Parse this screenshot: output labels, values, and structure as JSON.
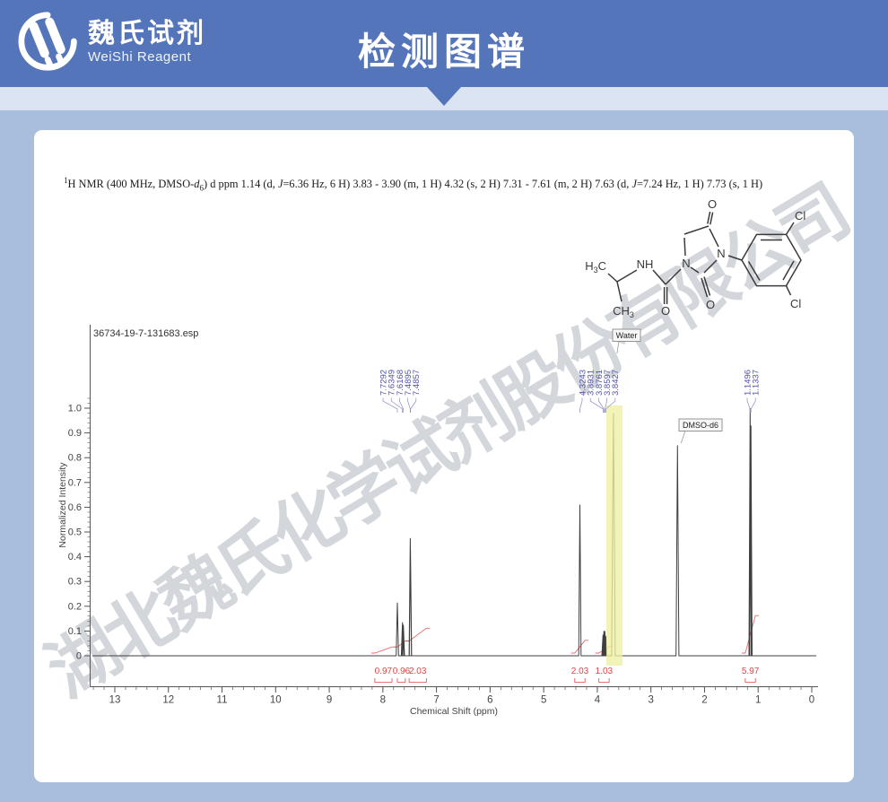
{
  "header": {
    "logo_cn": "魏氏试剂",
    "logo_en": "WeiShi Reagent",
    "title": "检测图谱",
    "bg_color": "#5575ba"
  },
  "watermark": {
    "text": "湖北魏氏化学试剂股份有限公司"
  },
  "nmr_text": {
    "sup": "1",
    "t1": "H NMR (400 MHz, DMSO-",
    "solvent_d": "d",
    "solvent_sub": "6",
    "t2": ") d ppm 1.14 (d, ",
    "j1": "J",
    "t3": "=6.36 Hz, 6 H) 3.83 - 3.90 (m, 1 H) 4.32 (s, 2 H) 7.31 - 7.61 (m, 2 H) 7.63 (d,  ",
    "j2": "J",
    "t4": "=7.24 Hz, 1 H) 7.73 (s, 1 H)"
  },
  "structure": {
    "h": "H",
    "three": "3",
    "c": "C",
    "nh": "NH",
    "n_ring1": "N",
    "n_ring2": "N",
    "o_amide": "O",
    "o_top": "O",
    "o_bottom": "O",
    "cl_top": "Cl",
    "cl_bottom": "Cl"
  },
  "chart_data": {
    "type": "line",
    "filename": "36734-19-7-131683.esp",
    "xlabel": "Chemical Shift (ppm)",
    "ylabel": "Normalized Intensity",
    "xlim": [
      13.47,
      -0.12
    ],
    "ylim": [
      0,
      1.05
    ],
    "x_ticks": [
      13,
      12,
      11,
      10,
      9,
      8,
      7,
      6,
      5,
      4,
      3,
      2,
      1,
      0
    ],
    "y_ticks": [
      0,
      0.1,
      0.2,
      0.3,
      0.4,
      0.5,
      0.6,
      0.7,
      0.8,
      0.9,
      1.0
    ],
    "peaks": [
      {
        "ppm": 7.7292,
        "h": 0.215
      },
      {
        "ppm": 7.6349,
        "h": 0.135
      },
      {
        "ppm": 7.6168,
        "h": 0.125
      },
      {
        "ppm": 7.4895,
        "h": 0.475
      },
      {
        "ppm": 7.4857,
        "h": 0.43
      },
      {
        "ppm": 4.3243,
        "h": 0.61
      },
      {
        "ppm": 3.8931,
        "h": 0.085
      },
      {
        "ppm": 3.8761,
        "h": 0.1
      },
      {
        "ppm": 3.8597,
        "h": 0.1
      },
      {
        "ppm": 3.8427,
        "h": 0.08
      },
      {
        "ppm": 3.7,
        "h": 0.98,
        "w": 2.0,
        "note": "Water"
      },
      {
        "ppm": 2.505,
        "h": 0.85,
        "w": 1.6,
        "note": "DMSO-d6"
      },
      {
        "ppm": 1.1496,
        "h": 1.0
      },
      {
        "ppm": 1.1337,
        "h": 0.93
      }
    ],
    "peak_label_groups": [
      [
        "7.7292",
        "7.6349",
        "7.6168",
        "7.4895",
        "7.4857"
      ],
      [
        "4.3243",
        "3.8931",
        "3.8761",
        "3.8597",
        "3.8427"
      ],
      [
        "1.1496",
        "1.1337"
      ]
    ],
    "integrals": [
      {
        "value": "0.97",
        "ppm_range": [
          8.15,
          7.83
        ]
      },
      {
        "value": "0.96",
        "ppm_range": [
          7.73,
          7.58
        ]
      },
      {
        "value": "2.03",
        "ppm_range": [
          7.51,
          7.19
        ]
      },
      {
        "value": "2.03",
        "ppm_range": [
          4.42,
          4.23
        ]
      },
      {
        "value": "1.03",
        "ppm_range": [
          3.97,
          3.78
        ]
      },
      {
        "value": "5.97",
        "ppm_range": [
          1.24,
          1.05
        ]
      }
    ],
    "annotations": [
      {
        "text": "Water",
        "ppm": 3.7
      },
      {
        "text": "DMSO-d6",
        "ppm": 2.505
      }
    ],
    "highlight": {
      "ppm_range": [
        3.833,
        3.53
      ],
      "color": "#eef0a2"
    },
    "accent_colors": {
      "integral": "#e04545",
      "peak_label": "#5252a8",
      "axis": "#555555"
    }
  }
}
